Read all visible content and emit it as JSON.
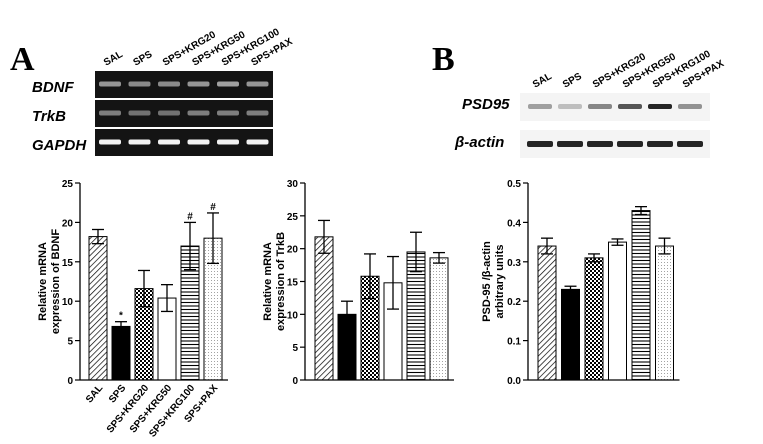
{
  "panels": {
    "a": "A",
    "b": "B"
  },
  "blot_a": {
    "lanes": [
      "SAL",
      "SPS",
      "SPS+KRG20",
      "SPS+KRG50",
      "SPS+KRG100",
      "SPS+PAX"
    ],
    "rows": [
      "BDNF",
      "TrkB",
      "GAPDH"
    ]
  },
  "blot_b": {
    "lanes": [
      "SAL",
      "SPS",
      "SPS+KRG20",
      "SPS+KRG50",
      "SPS+KRG100",
      "SPS+PAX"
    ],
    "rows": [
      "PSD95",
      "β-actin"
    ]
  },
  "colors": {
    "black": "#000000",
    "white": "#ffffff",
    "gel_bg": "#1a1a1a",
    "band": "#d9d9d9"
  },
  "chart_data": [
    {
      "type": "bar",
      "categories": [
        "SAL",
        "SPS",
        "SPS+KRG20",
        "SPS+KRG50",
        "SPS+KRG100",
        "SPS+PAX"
      ],
      "values": [
        18.2,
        6.8,
        11.6,
        10.4,
        17.0,
        18.0
      ],
      "errors": [
        0.9,
        0.6,
        2.3,
        1.7,
        3.0,
        3.2
      ],
      "annotations": [
        "",
        "*",
        "",
        "",
        "#",
        "#"
      ],
      "fills": [
        "diag-dense",
        "black",
        "checker",
        "white",
        "hlines",
        "dots"
      ],
      "ylabel": "Relative mRNA expression of BDNF",
      "ylim": [
        0,
        25
      ],
      "yticks": [
        "0",
        "5",
        "10",
        "15",
        "20",
        "25"
      ],
      "show_xlabels": true
    },
    {
      "type": "bar",
      "categories": [
        "SAL",
        "SPS",
        "SPS+KRG20",
        "SPS+KRG50",
        "SPS+KRG100",
        "SPS+PAX"
      ],
      "values": [
        21.8,
        10.0,
        15.8,
        14.8,
        19.5,
        18.6
      ],
      "errors": [
        2.5,
        2.0,
        3.4,
        4.0,
        3.0,
        0.8
      ],
      "annotations": [
        "",
        "",
        "",
        "",
        "",
        ""
      ],
      "fills": [
        "diag-dense",
        "black",
        "checker",
        "white",
        "hlines",
        "dots"
      ],
      "ylabel": "Relative mRNA expression of TrkB",
      "ylim": [
        0,
        30
      ],
      "yticks": [
        "0",
        "5",
        "10",
        "15",
        "20",
        "25",
        "30"
      ],
      "show_xlabels": false
    },
    {
      "type": "bar",
      "categories": [
        "SAL",
        "SPS",
        "SPS+KRG20",
        "SPS+KRG50",
        "SPS+KRG100",
        "SPS+PAX"
      ],
      "values": [
        0.34,
        0.23,
        0.31,
        0.35,
        0.43,
        0.34
      ],
      "errors": [
        0.02,
        0.008,
        0.01,
        0.008,
        0.01,
        0.02
      ],
      "annotations": [
        "",
        "",
        "",
        "",
        "",
        ""
      ],
      "fills": [
        "diag-dense",
        "black",
        "checker",
        "white",
        "hlines",
        "dots"
      ],
      "ylabel": "PSD-95 /β-actin arbitrary units",
      "ylim": [
        0,
        0.5
      ],
      "yticks": [
        "0.0",
        "0.1",
        "0.2",
        "0.3",
        "0.4",
        "0.5"
      ],
      "show_xlabels": false
    }
  ]
}
